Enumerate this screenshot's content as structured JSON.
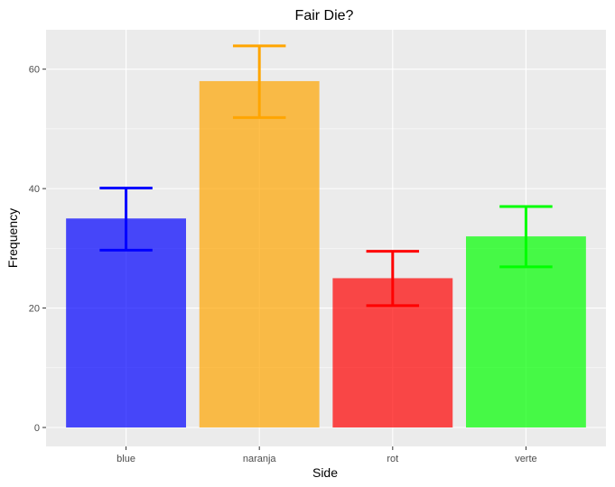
{
  "chart_data": {
    "type": "bar",
    "title": "Fair Die?",
    "xlabel": "Side",
    "ylabel": "Frequency",
    "categories": [
      "blue",
      "naranja",
      "rot",
      "verte"
    ],
    "values": [
      35,
      58,
      25,
      32
    ],
    "error_low": [
      29.7,
      51.9,
      20.4,
      26.9
    ],
    "error_high": [
      40.1,
      63.9,
      29.5,
      37.0
    ],
    "colors": [
      "#0000ff",
      "#ffa500",
      "#ff0000",
      "#00ff00"
    ],
    "bar_opacity": 0.7,
    "ylim": [
      0,
      66.6
    ],
    "yticks": [
      0,
      20,
      40,
      60
    ],
    "ytick_labels": [
      "0",
      "20",
      "40",
      "60"
    ],
    "grid": true,
    "panel_background": "#ebebeb",
    "grid_color": "#ffffff"
  }
}
